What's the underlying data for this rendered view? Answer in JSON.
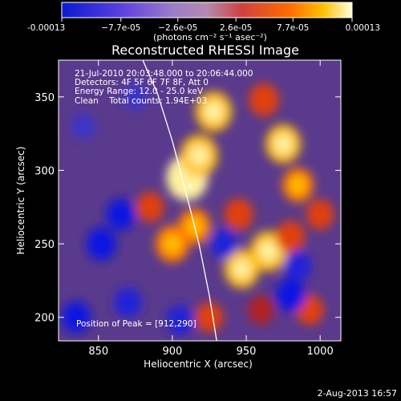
{
  "colorbar": {
    "ticks": [
      "-0.00013",
      "−7.7e-05",
      "−2.6e-05",
      "2.6e-05",
      "7.7e-05",
      "0.00013"
    ],
    "tick_values": [
      -0.00013,
      -7.7e-05,
      -2.6e-05,
      2.6e-05,
      7.7e-05,
      0.00013
    ],
    "vmin": -0.00013,
    "vmax": 0.00013,
    "unit_label": "(photons cm⁻² s⁻¹ asec⁻²)"
  },
  "annotations": [
    "21-Jul-2010 20:03:48.000 to 20:06:44.000",
    "Detectors: 4F 5F 6F 7F 8F, Att 0",
    "Energy Range: 12.0 - 25.0 keV",
    "Clean    Total counts: 1.94E+03"
  ],
  "peak_label": "Position of Peak = [912,290]",
  "footer_date": "2-Aug-2013 16:57",
  "chart_data": {
    "type": "heatmap",
    "title": "Reconstructed RHESSI Image",
    "xlabel": "Heliocentric X (arcsec)",
    "ylabel": "Heliocentric Y (arcsec)",
    "xlim": [
      823,
      1014
    ],
    "ylim": [
      184,
      375
    ],
    "x_ticks": [
      "850",
      "900",
      "950",
      "1000"
    ],
    "x_tick_values": [
      850,
      900,
      950,
      1000
    ],
    "y_ticks": [
      "200",
      "250",
      "300",
      "350"
    ],
    "y_tick_values": [
      200,
      250,
      300,
      350
    ],
    "grid": false,
    "peak": [
      912,
      290
    ],
    "limb_curve": [
      [
        880,
        375
      ],
      [
        890,
        352
      ],
      [
        900,
        320
      ],
      [
        910,
        282
      ],
      [
        918,
        250
      ],
      [
        925,
        215
      ],
      [
        930,
        184
      ]
    ],
    "sources": [
      {
        "x": 910,
        "y": 295,
        "level": 1.0
      },
      {
        "x": 918,
        "y": 310,
        "level": 0.85
      },
      {
        "x": 928,
        "y": 340,
        "level": 0.8
      },
      {
        "x": 962,
        "y": 348,
        "level": 0.55
      },
      {
        "x": 975,
        "y": 318,
        "level": 0.75
      },
      {
        "x": 985,
        "y": 290,
        "level": 0.6
      },
      {
        "x": 900,
        "y": 250,
        "level": 0.7
      },
      {
        "x": 915,
        "y": 262,
        "level": 0.65
      },
      {
        "x": 945,
        "y": 270,
        "level": 0.5
      },
      {
        "x": 965,
        "y": 245,
        "level": 0.8
      },
      {
        "x": 980,
        "y": 255,
        "level": 0.5
      },
      {
        "x": 947,
        "y": 233,
        "level": 0.75
      },
      {
        "x": 885,
        "y": 275,
        "level": 0.45
      },
      {
        "x": 925,
        "y": 200,
        "level": 0.45
      },
      {
        "x": 960,
        "y": 205,
        "level": 0.4
      },
      {
        "x": 993,
        "y": 205,
        "level": 0.45
      },
      {
        "x": 1000,
        "y": 270,
        "level": 0.45
      },
      {
        "x": 870,
        "y": 210,
        "level": -0.45
      },
      {
        "x": 852,
        "y": 250,
        "level": -0.55
      },
      {
        "x": 835,
        "y": 200,
        "level": -0.5
      },
      {
        "x": 865,
        "y": 270,
        "level": -0.5
      },
      {
        "x": 905,
        "y": 198,
        "level": -0.45
      },
      {
        "x": 935,
        "y": 250,
        "level": -0.45
      },
      {
        "x": 985,
        "y": 235,
        "level": -0.45
      },
      {
        "x": 980,
        "y": 215,
        "level": -0.55
      },
      {
        "x": 875,
        "y": 350,
        "level": -0.3
      },
      {
        "x": 840,
        "y": 330,
        "level": -0.3
      }
    ]
  }
}
